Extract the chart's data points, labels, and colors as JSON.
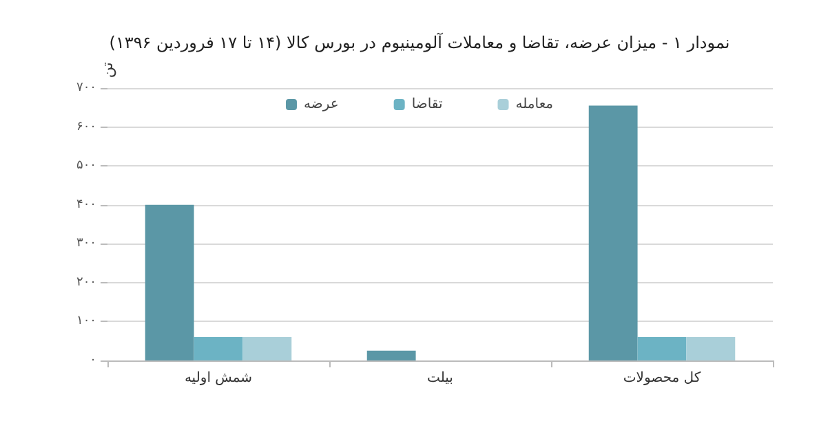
{
  "chart_data": {
    "type": "bar",
    "title": "نمودار ۱ - میزان عرضه، تقاضا و معاملات آلومینیوم در بورس کالا (۱۴ تا ۱۷ فروردین ۱۳۹۶)",
    "ylabel": "تن",
    "categories": [
      "شمش اولیه",
      "بیلت",
      "کل محصولات"
    ],
    "series": [
      {
        "name": "عرضه",
        "color": "#5b97a6",
        "values": [
          400,
          25,
          655
        ]
      },
      {
        "name": "تقاضا",
        "color": "#6cb3c4",
        "values": [
          60,
          0,
          60
        ]
      },
      {
        "name": "معامله",
        "color": "#a9cfd9",
        "values": [
          60,
          0,
          60
        ]
      }
    ],
    "ylim": [
      0,
      700
    ],
    "yticks": [
      {
        "value": 0,
        "label": "۰"
      },
      {
        "value": 100,
        "label": "۱۰۰"
      },
      {
        "value": 200,
        "label": "۲۰۰"
      },
      {
        "value": 300,
        "label": "۳۰۰"
      },
      {
        "value": 400,
        "label": "۴۰۰"
      },
      {
        "value": 500,
        "label": "۵۰۰"
      },
      {
        "value": 600,
        "label": "۶۰۰"
      },
      {
        "value": 700,
        "label": "۷۰۰"
      }
    ],
    "grid": "y",
    "legend": "top"
  }
}
